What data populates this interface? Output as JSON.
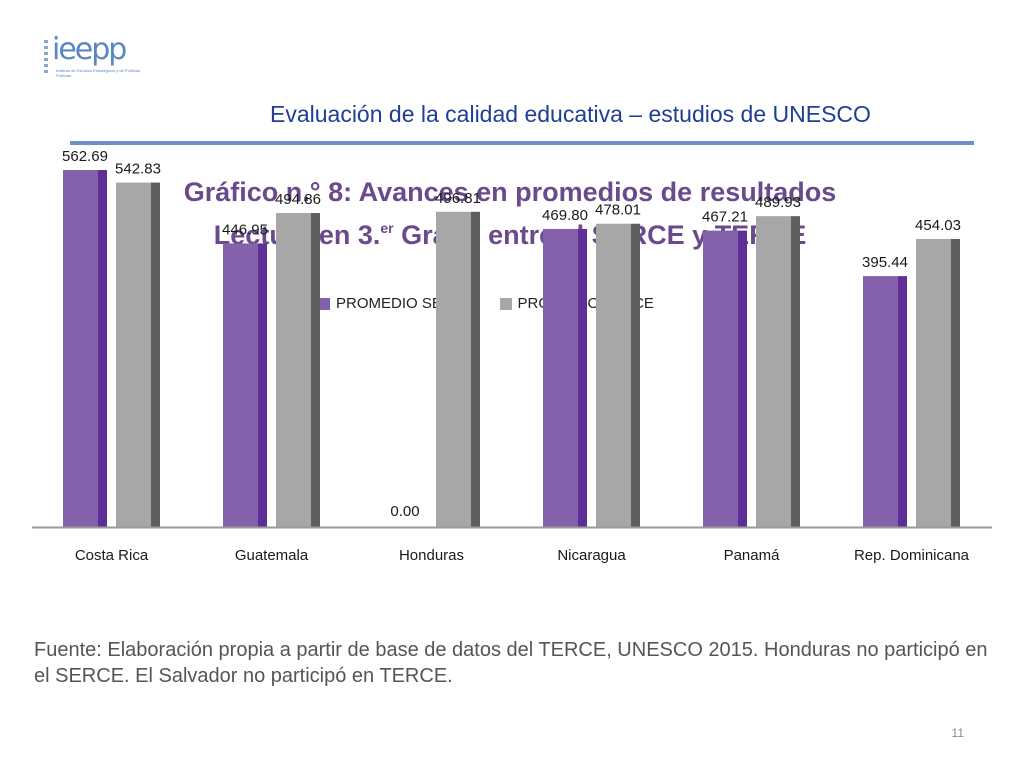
{
  "logo": {
    "wordmark": "ieepp",
    "subtitle": "Instituto de Estudios Estratégicos y de Políticas Públicas"
  },
  "slide": {
    "title": "Evaluación de la calidad educativa – estudios de UNESCO",
    "page_number": "11"
  },
  "chart_heading": {
    "line1": "Gráfico n.° 8: Avances en promedios de resultados",
    "line2_pre": "Lectura en 3.",
    "line2_sup": "er",
    "line2_post": " Grado entre el SERCE y TERCE"
  },
  "source_note": "Fuente: Elaboración propia a partir de base de datos del TERCE, UNESCO 2015. Honduras no participó en el SERCE. El Salvador no participó en TERCE.",
  "colors": {
    "serce": "#8462ab",
    "serce_side": "#5f2f97",
    "terce": "#a7a7a7",
    "terce_side": "#5e5e5e",
    "title_blue": "#1f3f95",
    "heading_purple": "#6a4a8c"
  },
  "chart_data": {
    "type": "bar",
    "title": "Gráfico n.° 8: Avances en promedios de resultados Lectura en 3.er Grado entre el SERCE y TERCE",
    "categories": [
      "Costa Rica",
      "Guatemala",
      "Honduras",
      "Nicaragua",
      "Panamá",
      "Rep. Dominicana"
    ],
    "series": [
      {
        "name": "PROMEDIO SERCE",
        "values": [
          562.69,
          446.95,
          0.0,
          469.8,
          467.21,
          395.44
        ],
        "labels": [
          "562.69",
          "446.95",
          "0.00",
          "469.80",
          "467.21",
          "395.44"
        ]
      },
      {
        "name": "PROMEDIO TERCE",
        "values": [
          542.83,
          494.86,
          496.81,
          478.01,
          489.93,
          454.03
        ],
        "labels": [
          "542.83",
          "494.86",
          "496.81",
          "478.01",
          "489.93",
          "454.03"
        ]
      }
    ],
    "ylim": [
      0,
      600
    ],
    "legend": "top-center",
    "grid": false
  }
}
